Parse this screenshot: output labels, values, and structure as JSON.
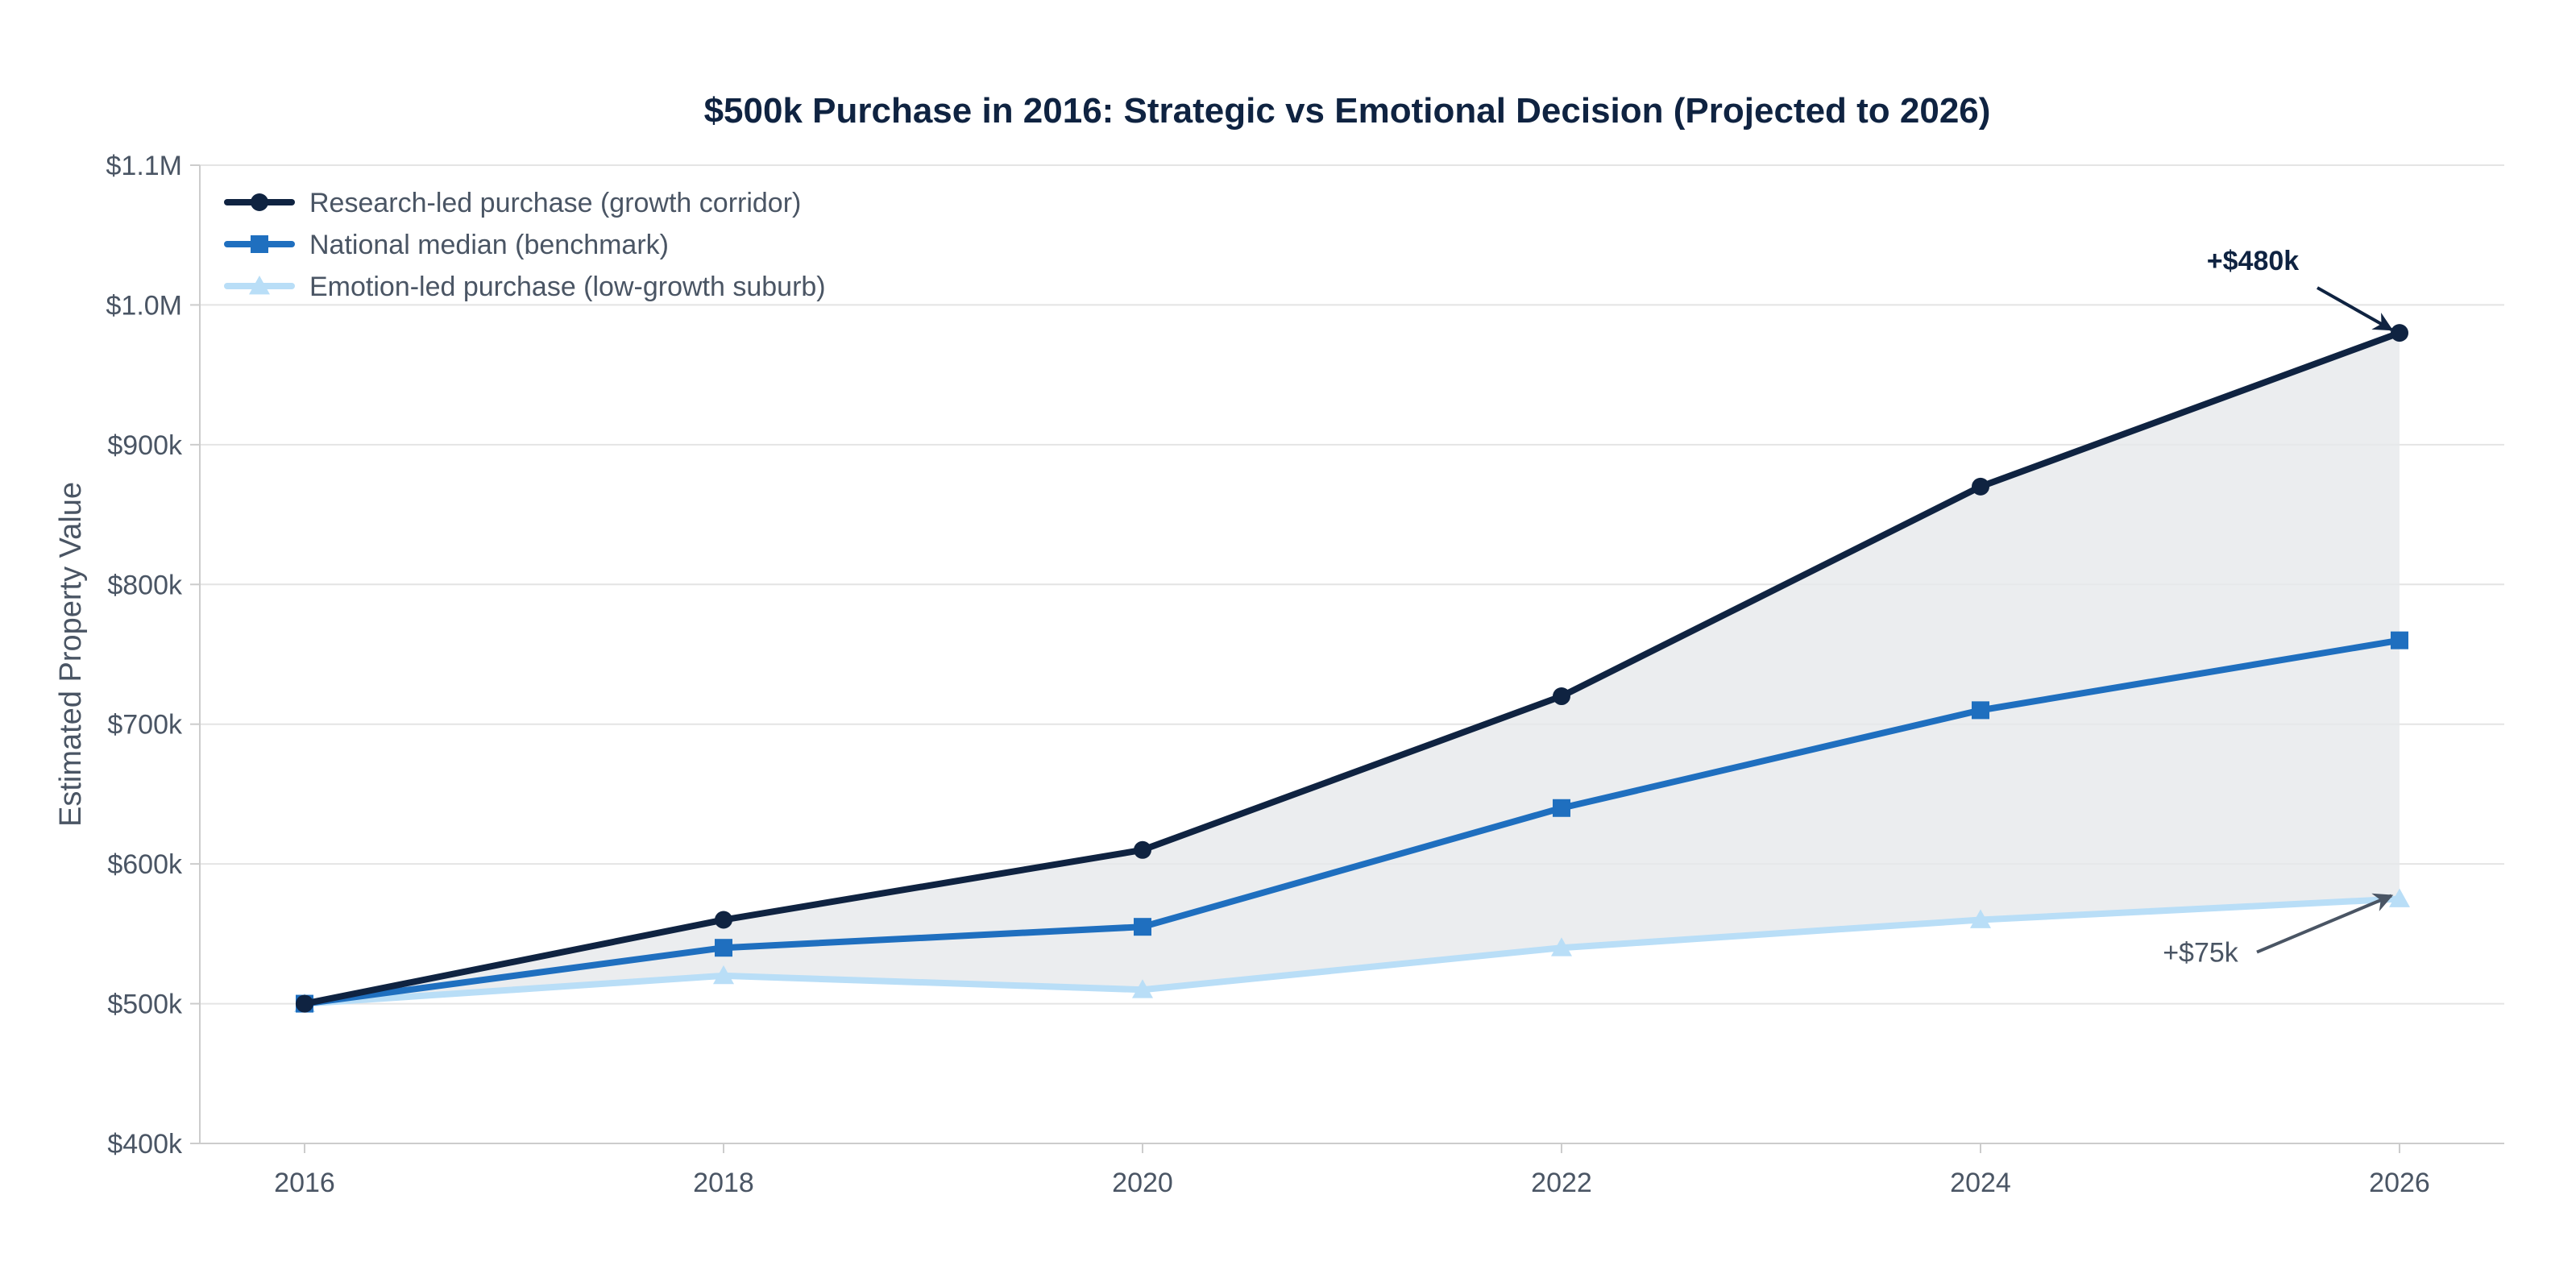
{
  "chart_data": {
    "type": "line",
    "title": "$500k Purchase in 2016: Strategic vs Emotional Decision (Projected to 2026)",
    "xlabel": "",
    "ylabel": "Estimated Property Value",
    "x": [
      2016,
      2018,
      2020,
      2022,
      2024,
      2026
    ],
    "x_tick_labels": [
      "2016",
      "2018",
      "2020",
      "2022",
      "2024",
      "2026"
    ],
    "xlim": [
      2015.5,
      2026.5
    ],
    "ylim": [
      400000,
      1100000
    ],
    "y_ticks": [
      400000,
      500000,
      600000,
      700000,
      800000,
      900000,
      1000000,
      1100000
    ],
    "y_tick_labels": [
      "$400k",
      "$500k",
      "$600k",
      "$700k",
      "$800k",
      "$900k",
      "$1.0M",
      "$1.1M"
    ],
    "grid": "horizontal",
    "legend_position": "top-left",
    "series": [
      {
        "name": "Research-led purchase (growth corridor)",
        "values": [
          500000,
          560000,
          610000,
          720000,
          870000,
          980000
        ],
        "color": "#0f2341",
        "marker": "circle"
      },
      {
        "name": "National median (benchmark)",
        "values": [
          500000,
          540000,
          555000,
          640000,
          710000,
          760000
        ],
        "color": "#1f6fbf",
        "marker": "square"
      },
      {
        "name": "Emotion-led purchase (low-growth suburb)",
        "values": [
          500000,
          520000,
          510000,
          540000,
          560000,
          575000
        ],
        "color": "#b9def7",
        "marker": "triangle"
      }
    ],
    "shaded_region": {
      "between": [
        "Research-led purchase (growth corridor)",
        "Emotion-led purchase (low-growth suburb)"
      ],
      "color": "#e6e8eb"
    },
    "annotations": [
      {
        "text": "+$480k",
        "series": 0,
        "target_x": 2026,
        "target_y": 980000,
        "text_x": 2025.3,
        "text_y": 1025000,
        "bold": true,
        "color": "#0f2341"
      },
      {
        "text": "+$75k",
        "series": 2,
        "target_x": 2026,
        "target_y": 575000,
        "text_x": 2025.05,
        "text_y": 530000,
        "bold": false,
        "color": "#4a5564"
      }
    ]
  },
  "colors": {
    "title": "#0f2341",
    "axis_text": "#4a5564",
    "axis_line": "#cccccc",
    "grid": "#e4e4e4",
    "background": "#ffffff"
  }
}
